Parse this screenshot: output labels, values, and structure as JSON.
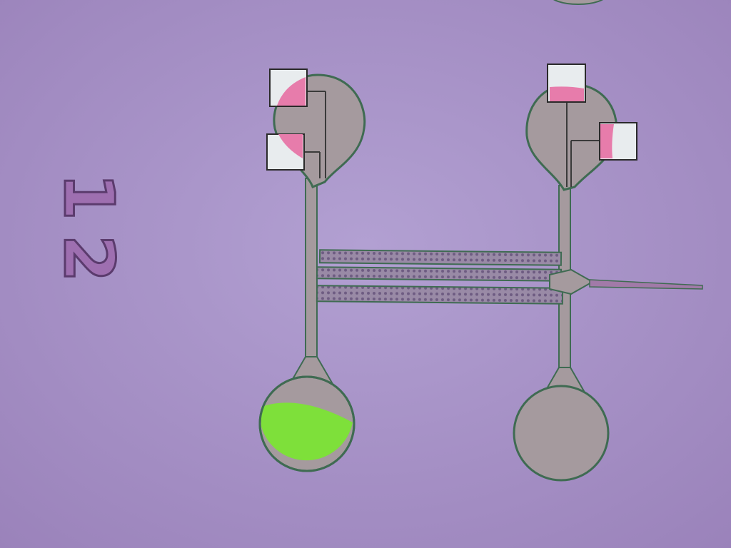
{
  "scene": {
    "description_label": "",
    "chip_label": "12",
    "colors": {
      "substrate": "#a58ec4",
      "substrate_light": "#b49fd0",
      "metal": "#a59a9e",
      "metal_edge": "#3f6b52",
      "channel": "#8f7fa2",
      "pad_white": "#e8ecee",
      "pad_pink": "#e77cab",
      "green_fill": "#7ee03a",
      "label_color": "#9e6fb0",
      "label_edge": "#5b3b6d"
    }
  }
}
